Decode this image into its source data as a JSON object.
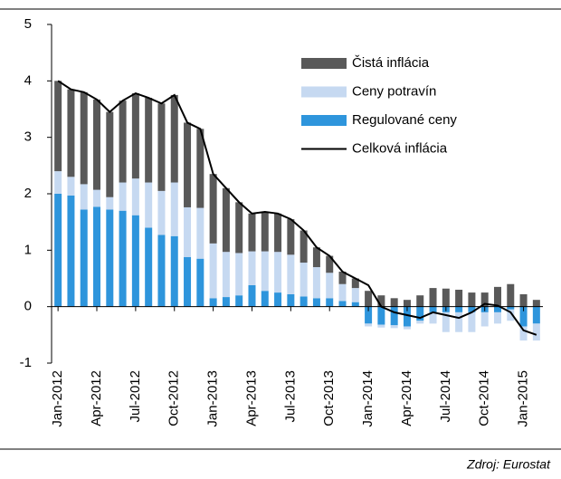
{
  "chart_data": {
    "type": "bar",
    "stacked": true,
    "categories": [
      "Jan-2012",
      null,
      null,
      "Apr-2012",
      null,
      null,
      "Jul-2012",
      null,
      null,
      "Oct-2012",
      null,
      null,
      "Jan-2013",
      null,
      null,
      "Apr-2013",
      null,
      null,
      "Jul-2013",
      null,
      null,
      "Oct-2013",
      null,
      null,
      "Jan-2014",
      null,
      null,
      "Apr-2014",
      null,
      null,
      "Jul-2014",
      null,
      null,
      "Oct-2014",
      null,
      null,
      "Jan-2015",
      null
    ],
    "series": [
      {
        "name": "Čistá inflácia",
        "color": "#595959",
        "values": [
          1.6,
          1.55,
          1.63,
          1.6,
          1.51,
          1.45,
          1.51,
          1.5,
          1.55,
          1.55,
          1.5,
          1.4,
          1.23,
          1.13,
          0.9,
          0.67,
          0.7,
          0.68,
          0.63,
          0.57,
          0.35,
          0.3,
          0.22,
          0.17,
          0.28,
          0.2,
          0.15,
          0.12,
          0.2,
          0.33,
          0.32,
          0.3,
          0.25,
          0.25,
          0.35,
          0.4,
          0.22,
          0.12
        ]
      },
      {
        "name": "Ceny potravín",
        "color": "#c6d9f1",
        "values": [
          0.4,
          0.33,
          0.45,
          0.3,
          0.22,
          0.5,
          0.65,
          0.8,
          0.78,
          0.95,
          0.88,
          0.9,
          0.97,
          0.8,
          0.75,
          0.6,
          0.7,
          0.72,
          0.7,
          0.6,
          0.55,
          0.45,
          0.3,
          0.25,
          -0.05,
          -0.05,
          -0.05,
          -0.05,
          -0.05,
          -0.2,
          -0.35,
          -0.35,
          -0.35,
          -0.25,
          -0.2,
          -0.2,
          -0.25,
          -0.3
        ]
      },
      {
        "name": "Regulované ceny",
        "color": "#2e95dc",
        "values": [
          2.0,
          1.97,
          1.72,
          1.77,
          1.72,
          1.7,
          1.62,
          1.4,
          1.27,
          1.25,
          0.88,
          0.85,
          0.15,
          0.17,
          0.2,
          0.38,
          0.28,
          0.25,
          0.22,
          0.18,
          0.15,
          0.15,
          0.1,
          0.08,
          -0.3,
          -0.32,
          -0.33,
          -0.35,
          -0.25,
          -0.1,
          -0.1,
          -0.1,
          -0.1,
          -0.1,
          -0.1,
          -0.05,
          -0.35,
          -0.3
        ]
      },
      {
        "name": "Celková inflácia",
        "color": "#000000",
        "type": "line",
        "values": [
          4.0,
          3.85,
          3.8,
          3.67,
          3.45,
          3.65,
          3.78,
          3.7,
          3.6,
          3.75,
          3.26,
          3.15,
          2.35,
          2.1,
          1.85,
          1.65,
          1.68,
          1.65,
          1.55,
          1.35,
          1.05,
          0.9,
          0.62,
          0.5,
          0.38,
          0.0,
          -0.1,
          -0.15,
          -0.2,
          -0.1,
          -0.15,
          -0.2,
          -0.1,
          0.05,
          0.02,
          -0.1,
          -0.42,
          -0.5
        ]
      }
    ],
    "ylim": [
      -1,
      5
    ],
    "yticks": [
      -1,
      0,
      1,
      2,
      3,
      4,
      5
    ],
    "legend": "upper right",
    "source": "Zdroj:  Eurostat"
  }
}
